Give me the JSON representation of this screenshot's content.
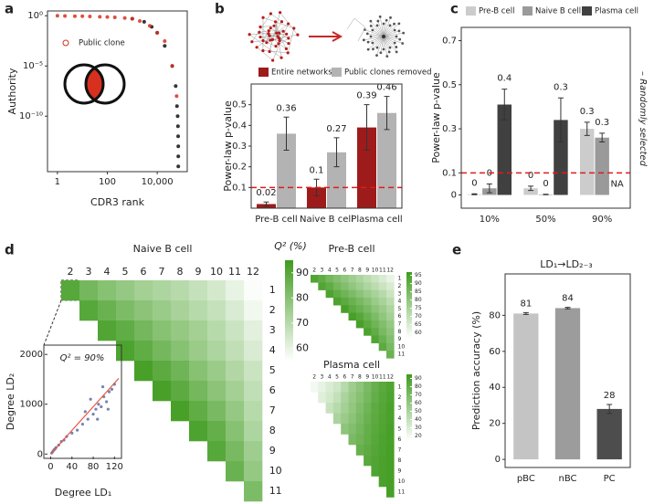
{
  "chart_data": [
    {
      "type": "scatter",
      "panel": "a",
      "xlabel": "CDR3 rank",
      "ylabel": "Authority",
      "xscale": "log",
      "yscale": "log",
      "xlim": [
        0.4,
        160000
      ],
      "ylim": [
        3e-16,
        3
      ],
      "xticks": [
        1,
        100,
        {
          "value": 10000,
          "label": "10,000"
        }
      ],
      "yticks": [
        {
          "value": 1,
          "label": "10⁰"
        },
        {
          "value": 1e-05,
          "label": "10⁻⁵"
        },
        {
          "value": 1e-10,
          "label": "10⁻¹⁰"
        }
      ],
      "series": [
        {
          "color": "#111111",
          "x": [
            1000,
            3000,
            6000,
            10000,
            20000,
            40000,
            55000,
            62000,
            66000,
            68000,
            69000,
            70000,
            70000,
            70000
          ],
          "values": [
            0.5,
            0.25,
            0.08,
            0.02,
            0.001,
            1e-05,
            1e-07,
            1e-09,
            1e-10,
            1e-11,
            1e-12,
            1e-13,
            1e-14,
            1e-15
          ]
        },
        {
          "name": "Public clone",
          "color": "#d7301f",
          "x": [
            1,
            2,
            5,
            10,
            20,
            50,
            100,
            200,
            500,
            1000,
            2000,
            5000,
            10000,
            20000,
            40000,
            60000
          ],
          "values": [
            1,
            0.95,
            0.9,
            0.9,
            0.85,
            0.8,
            0.75,
            0.7,
            0.6,
            0.5,
            0.3,
            0.1,
            0.02,
            0.003,
            1e-05,
            1e-08
          ]
        }
      ]
    },
    {
      "type": "bar",
      "panel": "b",
      "ylabel": "Power-law p-value",
      "categories": [
        "Pre-B cell",
        "Naive B cell",
        "Plasma cell"
      ],
      "series": [
        {
          "name": "Entire networks",
          "color": "#9e1b1b",
          "values": [
            0.02,
            0.1,
            0.39
          ],
          "errors": [
            0.01,
            0.04,
            0.11
          ]
        },
        {
          "name": "Public clones removed",
          "color": "#b3b3b3",
          "values": [
            0.36,
            0.27,
            0.46
          ],
          "errors": [
            0.08,
            0.07,
            0.08
          ]
        }
      ],
      "ylim": [
        0,
        0.6
      ],
      "yticks": [
        0.1,
        0.2,
        0.3,
        0.4,
        0.5
      ],
      "threshold": 0.1,
      "threshold_color": "#e31a1c"
    },
    {
      "type": "bar",
      "panel": "c",
      "ylabel": "Power-law p-value",
      "annotation": "– Randomly selected",
      "categories": [
        "10%",
        "50%",
        "90%"
      ],
      "series": [
        {
          "name": "Pre-B cell",
          "color": "#cccccc",
          "values": [
            0.003,
            0.03,
            0.3
          ],
          "errors": [
            0.002,
            0.01,
            0.03
          ],
          "value_labels": [
            "0",
            "0",
            "0.3"
          ]
        },
        {
          "name": "Naive B cell",
          "color": "#9a9a9a",
          "values": [
            0.03,
            0.002,
            0.26
          ],
          "errors": [
            0.02,
            0.001,
            0.02
          ],
          "value_labels": [
            "0",
            "0",
            "0.3"
          ]
        },
        {
          "name": "Plasma cell",
          "color": "#404040",
          "values": [
            0.41,
            0.34,
            null
          ],
          "errors": [
            0.07,
            0.1,
            null
          ],
          "value_labels": [
            "0.4",
            "0.3",
            "NA"
          ]
        }
      ],
      "ylim": [
        -0.06,
        0.76
      ],
      "yticks": [
        0,
        0.1,
        0.3,
        0.5,
        0.7
      ],
      "threshold": 0.1,
      "threshold_color": "#e31a1c"
    },
    {
      "type": "heatmap",
      "panel": "d",
      "title": "Naive B cell",
      "colorbar_label": "Q² (%)",
      "columns": [
        "2",
        "3",
        "4",
        "5",
        "6",
        "7",
        "8",
        "9",
        "10",
        "11",
        "12"
      ],
      "rows": [
        "1",
        "2",
        "3",
        "4",
        "5",
        "6",
        "7",
        "8",
        "9",
        "10",
        "11"
      ],
      "clim": [
        55,
        95
      ],
      "colorbar_ticks": [
        60,
        70,
        80,
        90
      ],
      "low_color": "#ffffff",
      "high_color": "#3f9b1e",
      "values": [
        [
          90,
          84,
          80,
          77,
          74,
          72,
          70,
          67,
          64,
          60,
          56
        ],
        [
          null,
          90,
          86,
          82,
          79,
          76,
          73,
          70,
          67,
          63,
          58
        ],
        [
          null,
          null,
          91,
          88,
          84,
          80,
          77,
          74,
          70,
          66,
          61
        ],
        [
          null,
          null,
          null,
          92,
          88,
          84,
          80,
          76,
          72,
          68,
          63
        ],
        [
          null,
          null,
          null,
          null,
          93,
          89,
          85,
          80,
          76,
          71,
          66
        ],
        [
          null,
          null,
          null,
          null,
          null,
          93,
          89,
          84,
          79,
          74,
          68
        ],
        [
          null,
          null,
          null,
          null,
          null,
          null,
          93,
          88,
          83,
          77,
          70
        ],
        [
          null,
          null,
          null,
          null,
          null,
          null,
          null,
          92,
          87,
          80,
          72
        ],
        [
          null,
          null,
          null,
          null,
          null,
          null,
          null,
          null,
          90,
          83,
          75
        ],
        [
          null,
          null,
          null,
          null,
          null,
          null,
          null,
          null,
          null,
          86,
          77
        ],
        [
          null,
          null,
          null,
          null,
          null,
          null,
          null,
          null,
          null,
          null,
          82
        ]
      ]
    },
    {
      "type": "scatter",
      "xlabel": "Degree LD₁",
      "ylabel": "Degree LD₂",
      "annotation": "Q² = 90%",
      "xlim": [
        -6,
        128
      ],
      "ylim": [
        -50,
        2150
      ],
      "xticks": [
        0,
        40,
        80,
        120
      ],
      "yticks": [
        0,
        1000,
        2000
      ],
      "series": [
        {
          "color": "#5a6fa8",
          "x": [
            2,
            4,
            6,
            8,
            10,
            15,
            20,
            25,
            30,
            40,
            50,
            60,
            65,
            70,
            75,
            80,
            85,
            88,
            90,
            95,
            98,
            100,
            105,
            108,
            110,
            115,
            120
          ],
          "values": [
            20,
            50,
            80,
            100,
            130,
            180,
            250,
            280,
            350,
            420,
            480,
            600,
            850,
            700,
            1100,
            800,
            900,
            700,
            1000,
            950,
            1350,
            1150,
            1050,
            900,
            1250,
            1300,
            1400
          ]
        },
        {
          "color": "#e8553f",
          "line": true,
          "x": [
            0,
            128
          ],
          "values": [
            0,
            1520
          ]
        }
      ]
    },
    {
      "type": "heatmap",
      "title": "Pre-B cell",
      "columns": [
        "2",
        "3",
        "4",
        "5",
        "6",
        "7",
        "8",
        "9",
        "10",
        "11",
        "12"
      ],
      "rows": [
        "1",
        "2",
        "3",
        "4",
        "5",
        "6",
        "7",
        "8",
        "9",
        "10",
        "11"
      ],
      "clim": [
        57,
        97
      ],
      "colorbar_ticks": [
        60,
        65,
        70,
        75,
        80,
        85,
        90,
        95
      ],
      "low_color": "#ffffff",
      "high_color": "#3f9b1e",
      "values": [
        [
          93,
          90,
          86,
          83,
          80,
          77,
          74,
          71,
          68,
          65,
          62
        ],
        [
          null,
          93,
          90,
          86,
          83,
          80,
          77,
          74,
          71,
          68,
          65
        ],
        [
          null,
          null,
          94,
          90,
          87,
          84,
          81,
          78,
          75,
          72,
          68
        ],
        [
          null,
          null,
          null,
          94,
          91,
          88,
          85,
          82,
          78,
          75,
          71
        ],
        [
          null,
          null,
          null,
          null,
          95,
          91,
          88,
          85,
          81,
          78,
          74
        ],
        [
          null,
          null,
          null,
          null,
          null,
          95,
          92,
          88,
          84,
          80,
          76
        ],
        [
          null,
          null,
          null,
          null,
          null,
          null,
          95,
          91,
          87,
          83,
          79
        ],
        [
          null,
          null,
          null,
          null,
          null,
          null,
          null,
          94,
          90,
          85,
          81
        ],
        [
          null,
          null,
          null,
          null,
          null,
          null,
          null,
          null,
          93,
          88,
          83
        ],
        [
          null,
          null,
          null,
          null,
          null,
          null,
          null,
          null,
          null,
          91,
          85
        ],
        [
          null,
          null,
          null,
          null,
          null,
          null,
          null,
          null,
          null,
          null,
          88
        ]
      ]
    },
    {
      "type": "heatmap",
      "title": "Plasma cell",
      "columns": [
        "2",
        "3",
        "4",
        "5",
        "6",
        "7",
        "8",
        "9",
        "10",
        "11",
        "12"
      ],
      "rows": [
        "1",
        "2",
        "3",
        "4",
        "5",
        "6",
        "7",
        "8",
        "9",
        "10",
        "11"
      ],
      "clim": [
        15,
        95
      ],
      "colorbar_ticks": [
        20,
        30,
        40,
        50,
        60,
        70,
        80,
        90
      ],
      "low_color": "#ffffff",
      "high_color": "#3f9b1e",
      "values": [
        [
          20,
          25,
          30,
          35,
          45,
          55,
          62,
          70,
          78,
          84,
          88
        ],
        [
          null,
          28,
          33,
          40,
          50,
          58,
          65,
          72,
          80,
          85,
          89
        ],
        [
          null,
          null,
          38,
          45,
          53,
          60,
          68,
          75,
          82,
          86,
          90
        ],
        [
          null,
          null,
          null,
          50,
          57,
          63,
          70,
          77,
          83,
          87,
          90
        ],
        [
          null,
          null,
          null,
          null,
          62,
          67,
          73,
          79,
          84,
          88,
          91
        ],
        [
          null,
          null,
          null,
          null,
          null,
          70,
          75,
          80,
          85,
          89,
          91
        ],
        [
          null,
          null,
          null,
          null,
          null,
          null,
          78,
          82,
          86,
          89,
          92
        ],
        [
          null,
          null,
          null,
          null,
          null,
          null,
          null,
          84,
          87,
          90,
          92
        ],
        [
          null,
          null,
          null,
          null,
          null,
          null,
          null,
          null,
          88,
          90,
          92
        ],
        [
          null,
          null,
          null,
          null,
          null,
          null,
          null,
          null,
          null,
          90,
          92
        ],
        [
          null,
          null,
          null,
          null,
          null,
          null,
          null,
          null,
          null,
          null,
          92
        ]
      ]
    },
    {
      "type": "bar",
      "panel": "e",
      "title": "LD₁→LD₂₋₃",
      "ylabel": "Prediction accuracy (%)",
      "categories": [
        "pBC",
        "nBC",
        "PC"
      ],
      "values": [
        81,
        84,
        28
      ],
      "errors": [
        0.5,
        0.4,
        2.5
      ],
      "colors": [
        "#c4c4c4",
        "#9c9c9c",
        "#4d4d4d"
      ],
      "ylim": [
        -4.5,
        103
      ],
      "yticks": [
        0,
        20,
        40,
        60,
        80
      ]
    }
  ]
}
